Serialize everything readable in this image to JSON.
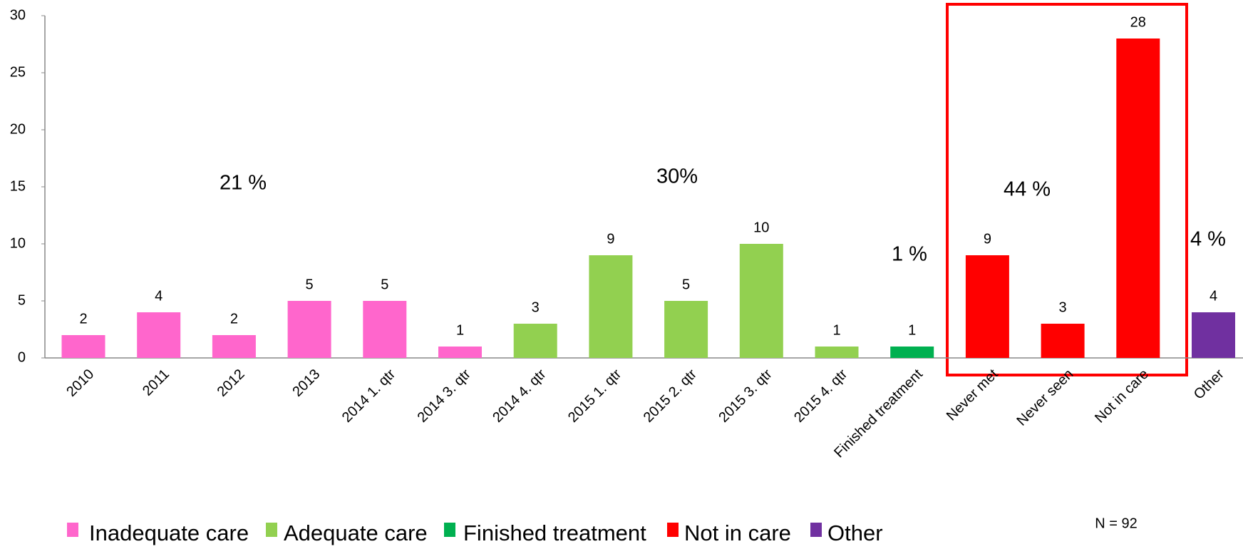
{
  "chart_data": {
    "type": "bar",
    "categories": [
      "2010",
      "2011",
      "2012",
      "2013",
      "2014 1. qtr",
      "2014 3. qtr",
      "2014 4. qtr",
      "2015 1. qtr",
      "2015 2. qtr",
      "2015 3. qtr",
      "2015 4. qtr",
      "Finished treatment",
      "Never met",
      "Never seen",
      "Not in care",
      "Other"
    ],
    "values": [
      2,
      4,
      2,
      5,
      5,
      1,
      3,
      9,
      5,
      10,
      1,
      1,
      9,
      3,
      28,
      4
    ],
    "colors": [
      "#ff66cc",
      "#ff66cc",
      "#ff66cc",
      "#ff66cc",
      "#ff66cc",
      "#ff66cc",
      "#92d050",
      "#92d050",
      "#92d050",
      "#92d050",
      "#92d050",
      "#00b050",
      "#ff0000",
      "#ff0000",
      "#ff0000",
      "#7030a0"
    ],
    "ylim": [
      0,
      30
    ],
    "yticks": [
      0,
      5,
      10,
      15,
      20,
      25,
      30
    ],
    "grid": false,
    "legend": [
      {
        "name": "Inadequate care",
        "color": "#ff66cc"
      },
      {
        "name": "Adequate care",
        "color": "#92d050"
      },
      {
        "name": "Finished treatment",
        "color": "#00b050"
      },
      {
        "name": "Not in care",
        "color": "#ff0000"
      },
      {
        "name": "Other",
        "color": "#7030a0"
      }
    ],
    "annotations": [
      "21 %",
      "30%",
      "1 %",
      "44 %",
      "4 %",
      "N = 92"
    ]
  }
}
